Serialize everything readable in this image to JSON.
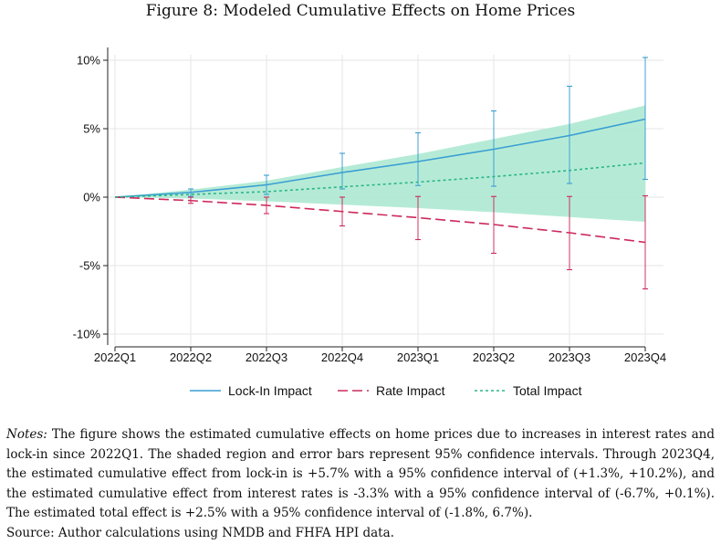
{
  "figure": {
    "title": "Figure 8: Modeled Cumulative Effects on Home Prices"
  },
  "chart_data": {
    "type": "line",
    "categories": [
      "2022Q1",
      "2022Q2",
      "2022Q3",
      "2022Q4",
      "2023Q1",
      "2023Q2",
      "2023Q3",
      "2023Q4"
    ],
    "yticks": [
      "10%",
      "5%",
      "0%",
      "-5%",
      "-10%"
    ],
    "ytick_values": [
      10,
      5,
      0,
      -5,
      -10
    ],
    "ylim": [
      -10.5,
      10.5
    ],
    "unit": "%",
    "grid": true,
    "legend_position": "bottom",
    "series": [
      {
        "name": "Lock-In Impact",
        "style": "solid",
        "color": "#3a9ed3",
        "values": [
          0,
          0.35,
          0.9,
          1.8,
          2.6,
          3.5,
          4.5,
          5.7
        ],
        "ci_low": [
          0,
          0.05,
          0.2,
          0.6,
          0.85,
          0.8,
          1.0,
          1.3
        ],
        "ci_high": [
          0,
          0.6,
          1.6,
          3.2,
          4.7,
          6.3,
          8.1,
          10.2
        ]
      },
      {
        "name": "Rate Impact",
        "style": "dashed",
        "color": "#cc2a5c",
        "values": [
          0,
          -0.25,
          -0.6,
          -1.05,
          -1.5,
          -2.0,
          -2.6,
          -3.3
        ],
        "ci_low": [
          0,
          -0.45,
          -1.2,
          -2.1,
          -3.1,
          -4.1,
          -5.3,
          -6.7
        ],
        "ci_high": [
          0,
          0.0,
          0.0,
          0.0,
          0.05,
          0.05,
          0.05,
          0.1
        ]
      },
      {
        "name": "Total Impact",
        "style": "dotted",
        "color": "#2bb58a",
        "values": [
          0,
          0.2,
          0.4,
          0.75,
          1.1,
          1.5,
          1.95,
          2.5
        ],
        "band_low": [
          0,
          -0.1,
          -0.3,
          -0.55,
          -0.8,
          -1.1,
          -1.45,
          -1.8
        ],
        "band_high": [
          0,
          0.55,
          1.2,
          2.2,
          3.15,
          4.25,
          5.35,
          6.7
        ],
        "band_color": "#a8e8cf"
      }
    ]
  },
  "notes": {
    "label": "Notes:",
    "text": "The figure shows the estimated cumulative effects on home prices due to increases in interest rates and lock-in since 2022Q1. The shaded region and error bars represent 95% confidence intervals. Through 2023Q4, the estimated cumulative effect from lock-in is +5.7% with a 95% confidence interval of (+1.3%, +10.2%), and the estimated cumulative effect from interest rates is -3.3% with a 95% confidence interval of (-6.7%, +0.1%). The estimated total effect is +2.5% with a 95% confidence interval of (-1.8%, 6.7%).",
    "source": "Source: Author calculations using NMDB and FHFA HPI data."
  }
}
